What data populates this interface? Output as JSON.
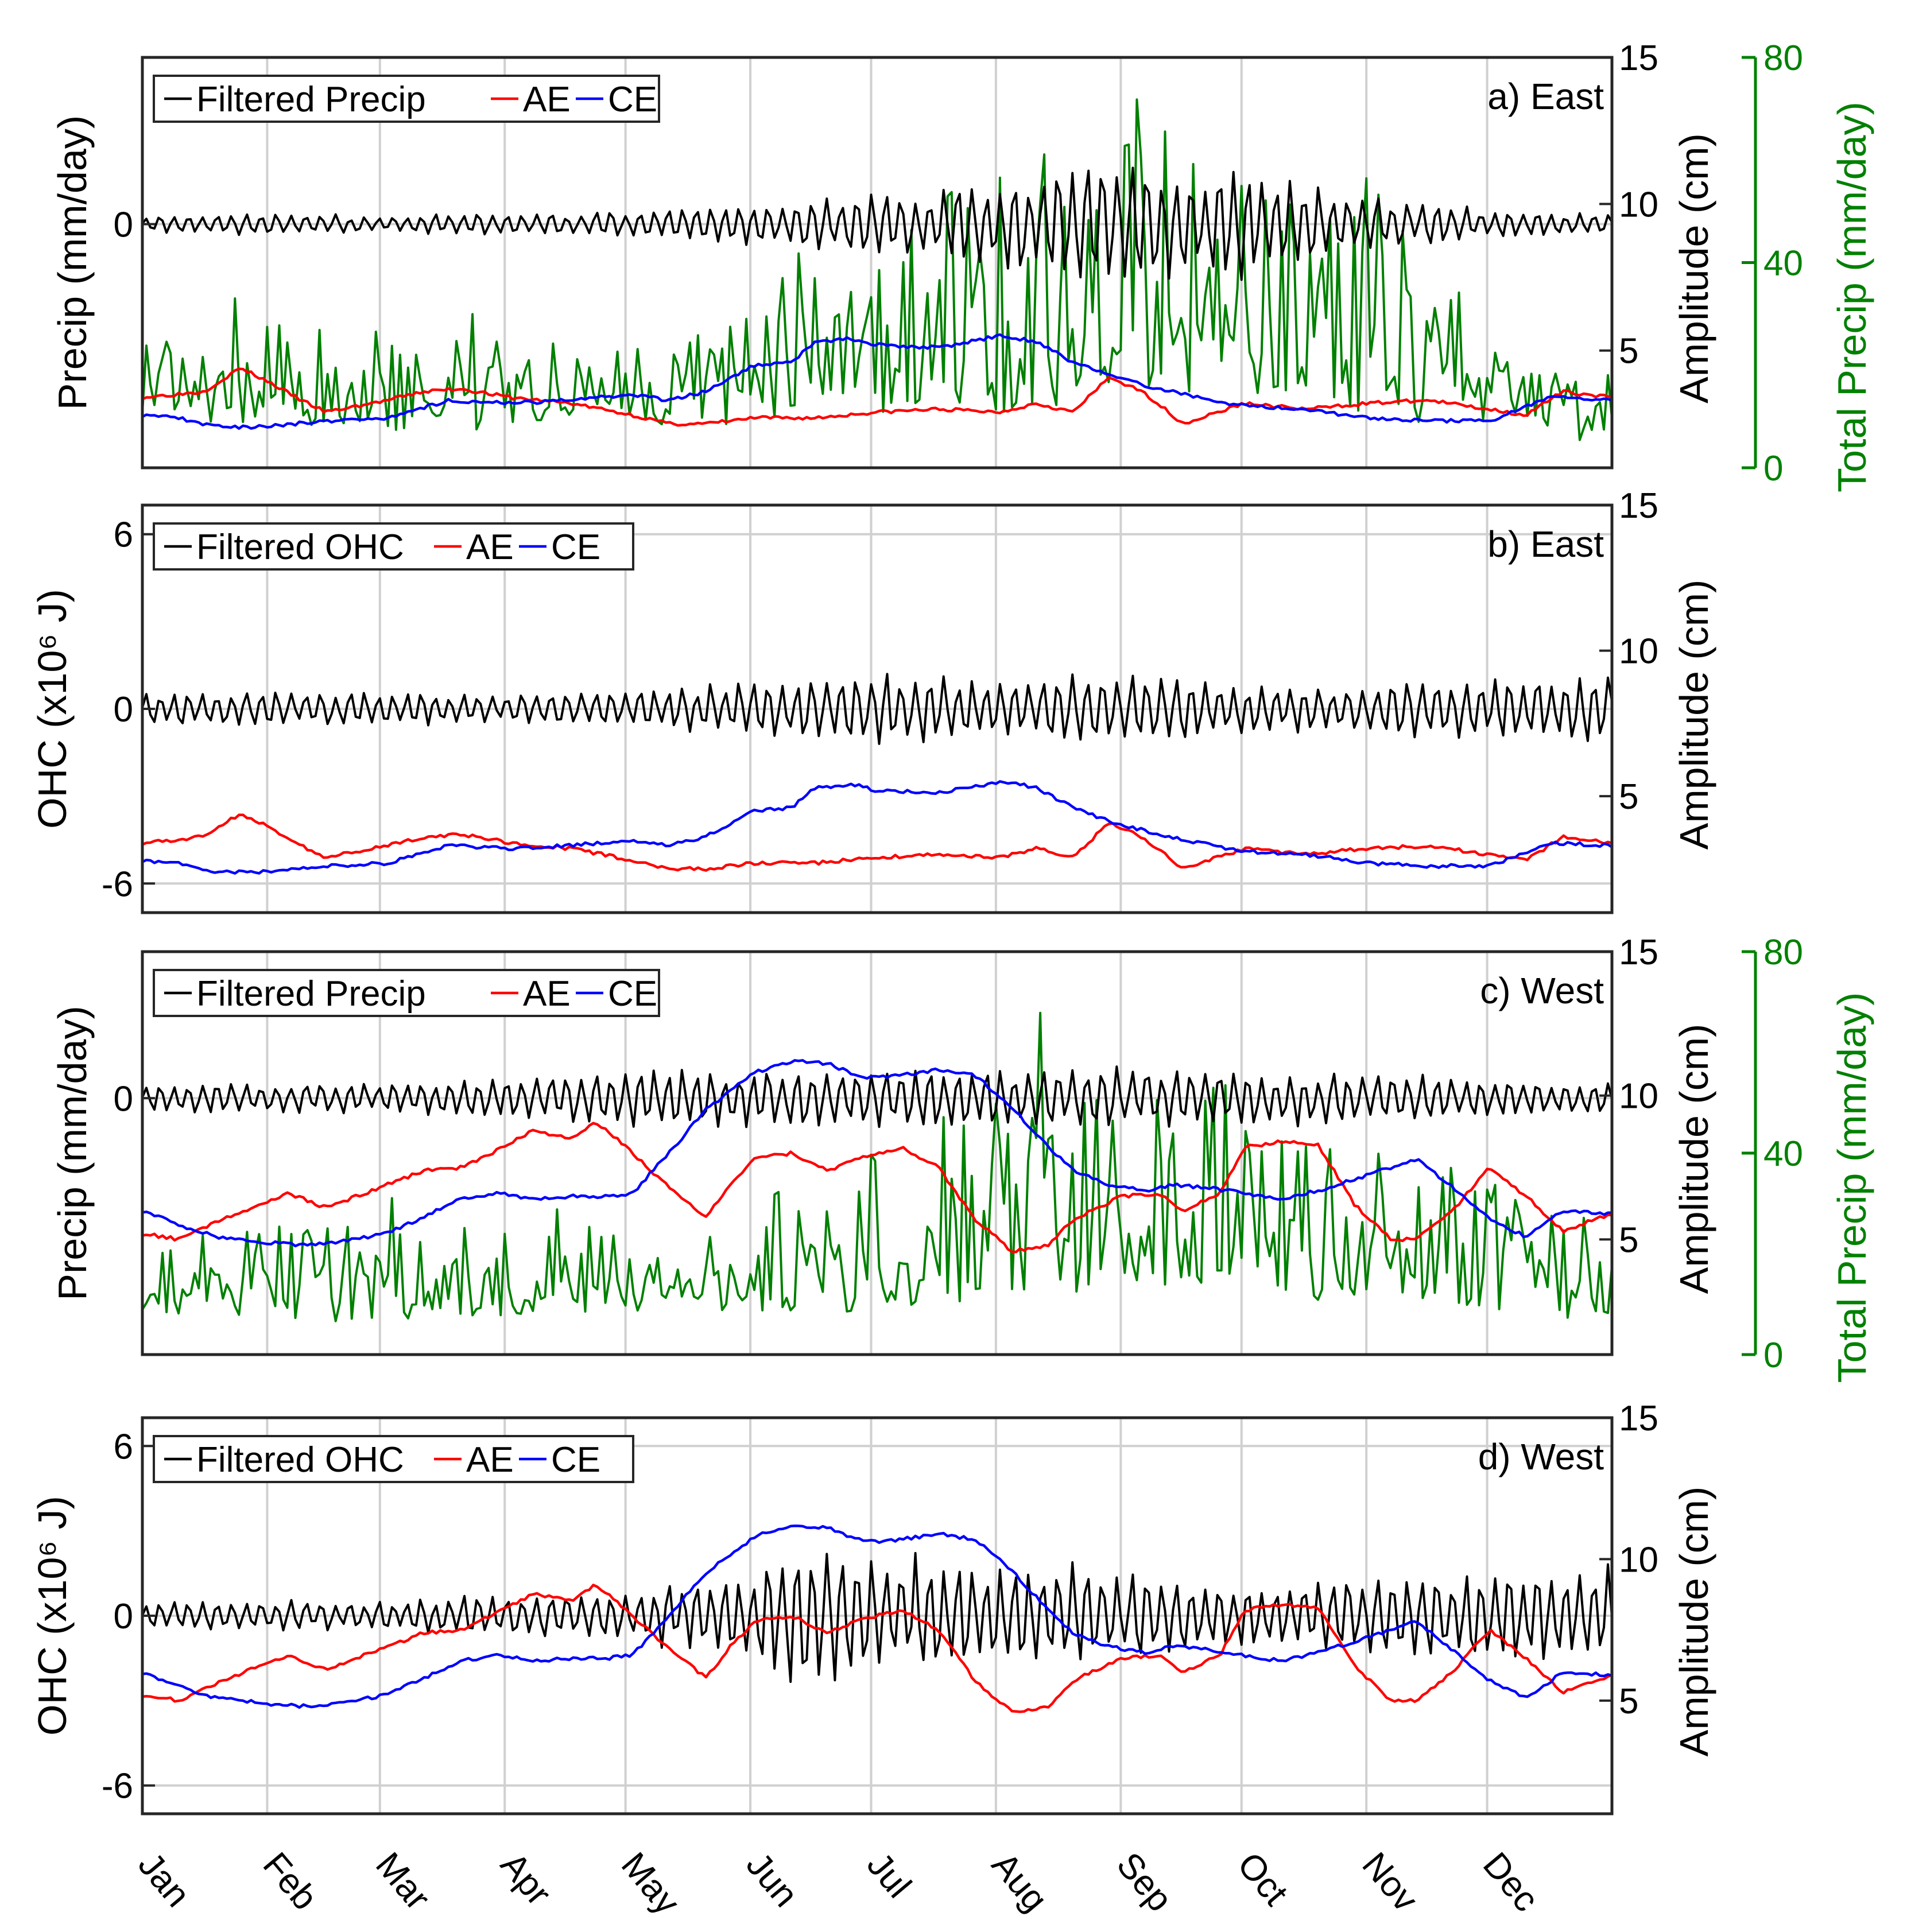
{
  "colors": {
    "filtered": "#000000",
    "ae": "#ff0000",
    "ce": "#0000ff",
    "total": "#008000",
    "grid": "#d0d0d0"
  },
  "chart_data": [
    {
      "id": "a",
      "type": "line",
      "title": "a) East",
      "legend": [
        "Filtered Precip",
        "AE",
        "CE"
      ],
      "legend_position": "top-left",
      "ylabel": "Precip (mm/day)",
      "y_ticks": [
        "0"
      ],
      "y2label": "Amplitude (cm)",
      "y2_ticks": [
        "5",
        "10",
        "15"
      ],
      "y2lim": [
        1,
        15
      ],
      "y3label": "Total Precip (mm/day)",
      "y3_ticks": [
        "0",
        "40",
        "80"
      ],
      "y3lim": [
        0,
        80
      ],
      "hgrid": [
        0
      ],
      "series": [
        {
          "name": "AE",
          "key": "ae",
          "axis": "amplitude",
          "x": [
            0,
            0.5,
            0.8,
            1.0,
            1.3,
            1.5,
            2.0,
            2.3,
            2.6,
            3.0,
            3.5,
            4.0,
            4.3,
            4.6,
            5.0,
            5.5,
            6.0,
            6.5,
            7.0,
            7.3,
            7.6,
            7.9,
            8.2,
            8.5,
            9.0,
            9.5,
            10.0,
            10.5,
            11.0,
            11.3,
            11.6,
            12.0
          ],
          "values": [
            3.4,
            3.6,
            4.4,
            4.0,
            3.3,
            2.9,
            3.3,
            3.6,
            3.7,
            3.4,
            3.2,
            2.8,
            2.5,
            2.5,
            2.7,
            2.7,
            2.9,
            3.0,
            2.9,
            3.2,
            2.9,
            4.1,
            3.5,
            2.5,
            3.2,
            3.0,
            3.2,
            3.3,
            3.0,
            2.8,
            3.6,
            3.4
          ]
        },
        {
          "name": "CE",
          "key": "ce",
          "axis": "amplitude",
          "x": [
            0,
            0.3,
            0.6,
            1.0,
            1.5,
            2.0,
            2.5,
            3.0,
            3.5,
            4.0,
            4.3,
            4.6,
            5.0,
            5.3,
            5.5,
            5.8,
            6.0,
            6.5,
            7.0,
            7.3,
            7.6,
            8.0,
            8.5,
            9.0,
            9.5,
            10.0,
            10.5,
            11.0,
            11.5,
            12.0
          ],
          "values": [
            2.8,
            2.7,
            2.4,
            2.4,
            2.6,
            2.7,
            3.3,
            3.2,
            3.3,
            3.5,
            3.3,
            3.6,
            4.5,
            4.6,
            5.3,
            5.4,
            5.2,
            5.1,
            5.5,
            5.3,
            4.6,
            4.0,
            3.5,
            3.1,
            3.0,
            2.7,
            2.6,
            2.6,
            3.4,
            3.3
          ]
        }
      ],
      "filtered": {
        "envelope_x": [
          0,
          1,
          2,
          3,
          4,
          5,
          6,
          7,
          7.5,
          8,
          9,
          10,
          11,
          12
        ],
        "envelope": [
          0.12,
          0.15,
          0.12,
          0.15,
          0.2,
          0.3,
          0.45,
          0.65,
          0.85,
          0.9,
          0.75,
          0.4,
          0.2,
          0.15
        ],
        "y_range": [
          -3.8,
          2.6
        ]
      },
      "total_precip": {
        "envelope_x": [
          0,
          1,
          2,
          3,
          4,
          5,
          5.5,
          6,
          6.5,
          7,
          7.5,
          8,
          8.5,
          9,
          9.5,
          10,
          10.5,
          11,
          11.5,
          12
        ],
        "base": [
          10,
          10,
          8,
          10,
          10,
          10,
          14,
          12,
          14,
          12,
          14,
          18,
          16,
          16,
          14,
          12,
          10,
          10,
          8,
          6
        ],
        "amp": [
          10,
          12,
          16,
          14,
          12,
          18,
          24,
          26,
          30,
          38,
          42,
          45,
          40,
          34,
          30,
          36,
          24,
          16,
          14,
          10
        ]
      }
    },
    {
      "id": "b",
      "type": "line",
      "title": "b) East",
      "legend": [
        "Filtered OHC",
        "AE",
        "CE"
      ],
      "legend_position": "top-left",
      "ylabel": "OHC (x10⁶ J)",
      "y_ticks": [
        "6",
        "0",
        "-6"
      ],
      "ylim": [
        -7,
        7
      ],
      "y2label": "Amplitude (cm)",
      "y2_ticks": [
        "5",
        "10",
        "15"
      ],
      "y2lim": [
        1,
        15
      ],
      "hgrid": [
        6,
        0,
        -6
      ],
      "series": [
        {
          "name": "AE",
          "key": "ae",
          "axis": "amplitude",
          "x": [
            0,
            0.5,
            0.8,
            1.0,
            1.3,
            1.5,
            2.0,
            2.3,
            2.6,
            3.0,
            3.5,
            4.0,
            4.3,
            4.6,
            5.0,
            5.5,
            6.0,
            6.5,
            7.0,
            7.3,
            7.6,
            7.9,
            8.2,
            8.5,
            9.0,
            9.5,
            10.0,
            10.5,
            11.0,
            11.3,
            11.6,
            12.0
          ],
          "values": [
            3.4,
            3.6,
            4.4,
            4.0,
            3.3,
            2.9,
            3.3,
            3.6,
            3.7,
            3.4,
            3.2,
            2.8,
            2.5,
            2.5,
            2.7,
            2.7,
            2.9,
            3.0,
            2.9,
            3.2,
            2.9,
            4.1,
            3.5,
            2.5,
            3.2,
            3.0,
            3.2,
            3.3,
            3.0,
            2.8,
            3.6,
            3.4
          ]
        },
        {
          "name": "CE",
          "key": "ce",
          "axis": "amplitude",
          "x": [
            0,
            0.3,
            0.6,
            1.0,
            1.5,
            2.0,
            2.5,
            3.0,
            3.5,
            4.0,
            4.3,
            4.6,
            5.0,
            5.3,
            5.5,
            5.8,
            6.0,
            6.5,
            7.0,
            7.3,
            7.6,
            8.0,
            8.5,
            9.0,
            9.5,
            10.0,
            10.5,
            11.0,
            11.5,
            12.0
          ],
          "values": [
            2.8,
            2.7,
            2.4,
            2.4,
            2.6,
            2.7,
            3.3,
            3.2,
            3.3,
            3.5,
            3.3,
            3.6,
            4.5,
            4.6,
            5.3,
            5.4,
            5.2,
            5.1,
            5.5,
            5.3,
            4.6,
            4.0,
            3.5,
            3.1,
            3.0,
            2.7,
            2.6,
            2.6,
            3.4,
            3.3
          ]
        }
      ],
      "filtered": {
        "envelope_x": [
          0,
          1,
          2,
          3,
          4,
          5,
          6,
          7,
          8,
          9,
          10,
          11,
          12
        ],
        "envelope": [
          0.6,
          0.6,
          0.5,
          0.5,
          0.6,
          0.9,
          1.2,
          0.9,
          1.2,
          0.8,
          0.8,
          1.0,
          1.1
        ],
        "y_range": [
          -7,
          7
        ]
      }
    },
    {
      "id": "c",
      "type": "line",
      "title": "c) West",
      "legend": [
        "Filtered Precip",
        "AE",
        "CE"
      ],
      "legend_position": "top-left",
      "ylabel": "Precip (mm/day)",
      "y_ticks": [
        "0"
      ],
      "y2label": "Amplitude (cm)",
      "y2_ticks": [
        "5",
        "10",
        "15"
      ],
      "y2lim": [
        1,
        15
      ],
      "y3label": "Total Precip (mm/day)",
      "y3_ticks": [
        "0",
        "40",
        "80"
      ],
      "y3lim": [
        0,
        80
      ],
      "hgrid": [
        0
      ],
      "series": [
        {
          "name": "AE",
          "key": "ae",
          "axis": "amplitude",
          "x": [
            0,
            0.3,
            0.6,
            1.0,
            1.2,
            1.5,
            2.0,
            2.3,
            2.6,
            2.9,
            3.2,
            3.5,
            3.7,
            3.9,
            4.2,
            4.6,
            4.8,
            5.0,
            5.3,
            5.6,
            5.9,
            6.2,
            6.5,
            6.8,
            7.1,
            7.4,
            7.6,
            7.8,
            8.0,
            8.3,
            8.5,
            8.8,
            9.0,
            9.3,
            9.6,
            9.9,
            10.2,
            10.4,
            10.7,
            11.0,
            11.3,
            11.6,
            11.8,
            12.0
          ],
          "values": [
            5.2,
            5.0,
            5.6,
            6.3,
            6.6,
            6.1,
            6.9,
            7.4,
            7.5,
            8.1,
            8.8,
            8.5,
            9.1,
            8.4,
            7.2,
            5.8,
            6.9,
            7.8,
            8.0,
            7.4,
            7.9,
            8.2,
            7.5,
            5.7,
            4.6,
            4.8,
            5.7,
            6.1,
            6.5,
            6.6,
            6.0,
            6.6,
            8.2,
            8.4,
            8.3,
            6.2,
            5.0,
            5.0,
            6.0,
            7.5,
            6.5,
            5.3,
            5.6,
            5.9
          ]
        },
        {
          "name": "CE",
          "key": "ce",
          "axis": "amplitude",
          "x": [
            0,
            0.3,
            0.6,
            1.0,
            1.3,
            1.6,
            2.0,
            2.3,
            2.6,
            2.9,
            3.2,
            3.5,
            3.8,
            4.0,
            4.3,
            4.6,
            5.0,
            5.3,
            5.6,
            5.9,
            6.2,
            6.5,
            6.8,
            7.1,
            7.4,
            7.6,
            7.9,
            8.2,
            8.4,
            8.7,
            9.0,
            9.3,
            9.6,
            9.9,
            10.2,
            10.4,
            10.7,
            11.0,
            11.3,
            11.6,
            12.0
          ],
          "values": [
            6.0,
            5.5,
            5.1,
            4.9,
            4.8,
            4.9,
            5.2,
            5.8,
            6.4,
            6.6,
            6.4,
            6.5,
            6.5,
            6.6,
            8.0,
            9.5,
            10.8,
            11.2,
            11.1,
            10.6,
            10.7,
            10.9,
            10.7,
            9.6,
            8.2,
            7.4,
            6.9,
            6.7,
            6.9,
            6.8,
            6.6,
            6.4,
            6.7,
            7.1,
            7.5,
            7.8,
            6.8,
            5.7,
            5.1,
            6.0,
            5.9
          ]
        }
      ],
      "filtered": {
        "envelope_x": [
          0,
          1,
          2,
          3,
          4,
          5,
          6,
          7,
          8,
          9,
          10,
          11,
          12
        ],
        "envelope": [
          0.3,
          0.3,
          0.3,
          0.4,
          0.6,
          0.6,
          0.6,
          0.6,
          0.6,
          0.6,
          0.5,
          0.4,
          0.3
        ],
        "y_range": [
          -5.6,
          3.2
        ]
      },
      "total_precip": {
        "envelope_x": [
          0,
          1,
          2,
          3,
          4,
          5,
          6,
          7,
          7.4,
          8,
          9,
          10,
          11,
          12
        ],
        "base": [
          8,
          8,
          8,
          8,
          10,
          10,
          10,
          12,
          14,
          14,
          14,
          12,
          10,
          8
        ],
        "amp": [
          12,
          14,
          14,
          14,
          14,
          18,
          24,
          30,
          34,
          34,
          28,
          24,
          20,
          12
        ]
      }
    },
    {
      "id": "d",
      "type": "line",
      "title": "d) West",
      "legend": [
        "Filtered OHC",
        "AE",
        "CE"
      ],
      "legend_position": "top-left",
      "ylabel": "OHC (x10⁶ J)",
      "y_ticks": [
        "6",
        "0",
        "-6"
      ],
      "ylim": [
        -7,
        7
      ],
      "y2label": "Amplitude (cm)",
      "y2_ticks": [
        "5",
        "10",
        "15"
      ],
      "y2lim": [
        1,
        15
      ],
      "hgrid": [
        6,
        0,
        -6
      ],
      "series": [
        {
          "name": "AE",
          "key": "ae",
          "axis": "amplitude",
          "x": [
            0,
            0.3,
            0.6,
            1.0,
            1.2,
            1.5,
            2.0,
            2.3,
            2.6,
            2.9,
            3.2,
            3.5,
            3.7,
            3.9,
            4.2,
            4.6,
            4.8,
            5.0,
            5.3,
            5.6,
            5.9,
            6.2,
            6.5,
            6.8,
            7.1,
            7.4,
            7.6,
            7.8,
            8.0,
            8.3,
            8.5,
            8.8,
            9.0,
            9.3,
            9.6,
            9.9,
            10.2,
            10.4,
            10.7,
            11.0,
            11.3,
            11.6,
            11.8,
            12.0
          ],
          "values": [
            5.2,
            5.0,
            5.6,
            6.3,
            6.6,
            6.1,
            6.9,
            7.4,
            7.5,
            8.1,
            8.8,
            8.5,
            9.1,
            8.4,
            7.2,
            5.8,
            6.9,
            7.8,
            8.0,
            7.4,
            7.9,
            8.2,
            7.5,
            5.7,
            4.6,
            4.8,
            5.7,
            6.1,
            6.5,
            6.6,
            6.0,
            6.6,
            8.2,
            8.4,
            8.3,
            6.2,
            5.0,
            5.0,
            6.0,
            7.5,
            6.5,
            5.3,
            5.6,
            5.9
          ]
        },
        {
          "name": "CE",
          "key": "ce",
          "axis": "amplitude",
          "x": [
            0,
            0.3,
            0.6,
            1.0,
            1.3,
            1.6,
            2.0,
            2.3,
            2.6,
            2.9,
            3.2,
            3.5,
            3.8,
            4.0,
            4.3,
            4.6,
            5.0,
            5.3,
            5.6,
            5.9,
            6.2,
            6.5,
            6.8,
            7.1,
            7.4,
            7.6,
            7.9,
            8.2,
            8.4,
            8.7,
            9.0,
            9.3,
            9.6,
            9.9,
            10.2,
            10.4,
            10.7,
            11.0,
            11.3,
            11.6,
            12.0
          ],
          "values": [
            6.0,
            5.5,
            5.1,
            4.9,
            4.8,
            4.9,
            5.2,
            5.8,
            6.4,
            6.6,
            6.4,
            6.5,
            6.5,
            6.6,
            8.0,
            9.5,
            10.8,
            11.2,
            11.1,
            10.6,
            10.7,
            10.9,
            10.7,
            9.6,
            8.2,
            7.4,
            6.9,
            6.7,
            6.9,
            6.8,
            6.6,
            6.4,
            6.7,
            7.1,
            7.5,
            7.8,
            6.8,
            5.7,
            5.1,
            6.0,
            5.9
          ]
        }
      ],
      "filtered": {
        "envelope_x": [
          0,
          1,
          2,
          3,
          4,
          5,
          5.4,
          6,
          7,
          8,
          9,
          10,
          11,
          12
        ],
        "envelope": [
          0.5,
          0.5,
          0.5,
          0.7,
          0.8,
          1.6,
          2.6,
          2.0,
          1.6,
          1.6,
          1.0,
          1.2,
          1.5,
          1.6
        ],
        "y_range": [
          -7,
          7
        ]
      }
    }
  ],
  "months": [
    "Jan",
    "Feb",
    "Mar",
    "Apr",
    "May",
    "Jun",
    "Jul",
    "Aug",
    "Sep",
    "Oct",
    "Nov",
    "Dec"
  ]
}
